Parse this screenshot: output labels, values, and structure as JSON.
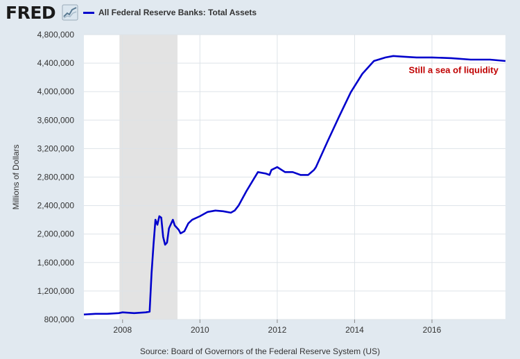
{
  "header": {
    "logo_text": "FRED",
    "logo_icon": "trend-chart-icon",
    "series_color": "#0000cc"
  },
  "source": "Source: Board of Governors of the Federal Reserve System (US)",
  "chart_data": {
    "type": "line",
    "title": "",
    "xlabel": "",
    "ylabel": "Millions of Dollars",
    "xlim": [
      2007.0,
      2017.9
    ],
    "ylim": [
      800000,
      4800000
    ],
    "grid": true,
    "legend": "top-left",
    "x_ticks": [
      2008,
      2010,
      2012,
      2014,
      2016
    ],
    "x_tick_labels": [
      "2008",
      "2010",
      "2012",
      "2014",
      "2016"
    ],
    "y_ticks": [
      800000,
      1200000,
      1600000,
      2000000,
      2400000,
      2800000,
      3200000,
      3600000,
      4000000,
      4400000,
      4800000
    ],
    "y_tick_labels": [
      "800,000",
      "1,200,000",
      "1,600,000",
      "2,000,000",
      "2,400,000",
      "2,800,000",
      "3,200,000",
      "3,600,000",
      "4,000,000",
      "4,400,000",
      "4,800,000"
    ],
    "recession": {
      "start": 2007.92,
      "end": 2009.42,
      "color": "#e3e3e3"
    },
    "annotation": {
      "text": "Still a sea of liquidity",
      "x": 2015.4,
      "y": 4300000,
      "color": "#c00000"
    },
    "series": [
      {
        "name": "All Federal Reserve Banks: Total Assets",
        "color": "#0000cc",
        "x": [
          2007.0,
          2007.3,
          2007.6,
          2007.9,
          2008.0,
          2008.3,
          2008.6,
          2008.7,
          2008.75,
          2008.8,
          2008.85,
          2008.9,
          2008.95,
          2009.0,
          2009.05,
          2009.1,
          2009.15,
          2009.2,
          2009.3,
          2009.35,
          2009.45,
          2009.5,
          2009.6,
          2009.7,
          2009.8,
          2010.0,
          2010.2,
          2010.4,
          2010.6,
          2010.8,
          2010.9,
          2011.0,
          2011.2,
          2011.4,
          2011.5,
          2011.7,
          2011.8,
          2011.85,
          2012.0,
          2012.2,
          2012.4,
          2012.6,
          2012.8,
          2012.95,
          2013.0,
          2013.3,
          2013.6,
          2013.9,
          2014.2,
          2014.5,
          2014.8,
          2015.0,
          2015.3,
          2015.6,
          2016.0,
          2016.5,
          2017.0,
          2017.5,
          2017.9
        ],
        "values": [
          870000,
          880000,
          880000,
          890000,
          900000,
          890000,
          900000,
          910000,
          1450000,
          1850000,
          2200000,
          2130000,
          2250000,
          2230000,
          1960000,
          1850000,
          1880000,
          2080000,
          2200000,
          2120000,
          2060000,
          2010000,
          2040000,
          2150000,
          2200000,
          2250000,
          2310000,
          2330000,
          2320000,
          2300000,
          2330000,
          2400000,
          2600000,
          2780000,
          2870000,
          2850000,
          2830000,
          2900000,
          2940000,
          2870000,
          2870000,
          2830000,
          2830000,
          2900000,
          2940000,
          3300000,
          3650000,
          3990000,
          4250000,
          4430000,
          4480000,
          4500000,
          4490000,
          4480000,
          4480000,
          4470000,
          4450000,
          4450000,
          4430000
        ]
      }
    ]
  }
}
